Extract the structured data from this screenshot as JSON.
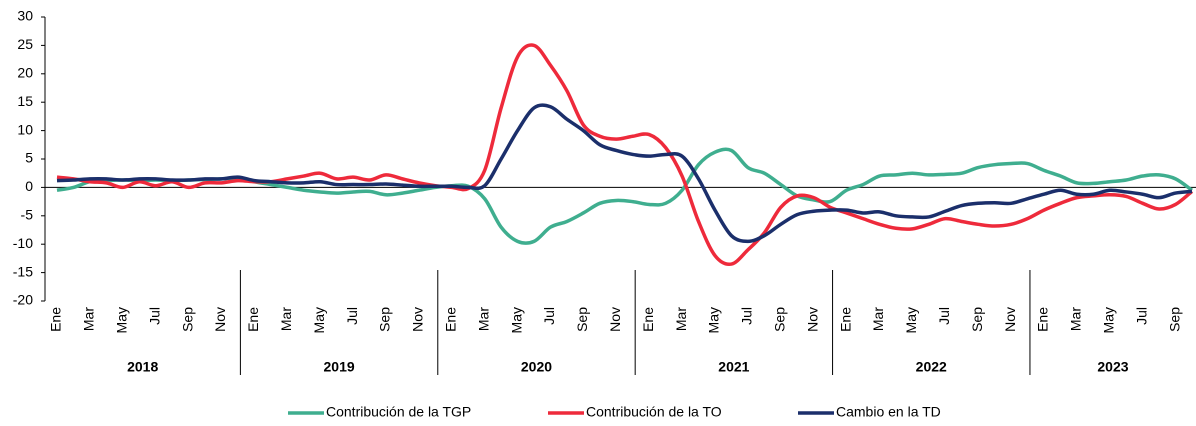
{
  "chart_data": {
    "type": "line",
    "categories": [
      "Ene",
      null,
      "Mar",
      null,
      "May",
      null,
      "Jul",
      null,
      "Sep",
      null,
      "Nov",
      null,
      "Ene",
      null,
      "Mar",
      null,
      "May",
      null,
      "Jul",
      null,
      "Sep",
      null,
      "Nov",
      null,
      "Ene",
      null,
      "Mar",
      null,
      "May",
      null,
      "Jul",
      null,
      "Sep",
      null,
      "Nov",
      null,
      "Ene",
      null,
      "Mar",
      null,
      "May",
      null,
      "Jul",
      null,
      "Sep",
      null,
      "Nov",
      null,
      "Ene",
      null,
      "Mar",
      null,
      "May",
      null,
      "Jul",
      null,
      "Sep",
      null,
      "Nov",
      null,
      "Ene",
      null,
      "Mar",
      null,
      "May",
      null,
      "Jul",
      null,
      "Sep",
      null
    ],
    "years": [
      "2018",
      "2019",
      "2020",
      "2021",
      "2022",
      "2023"
    ],
    "series": [
      {
        "name": "Contribución de la TGP",
        "color": "#3fae8f",
        "values": [
          -0.5,
          0,
          1,
          1.2,
          1.3,
          1.2,
          1.3,
          1.2,
          1.3,
          1.4,
          1.5,
          1.6,
          1,
          0.5,
          0,
          -0.5,
          -0.8,
          -1,
          -0.8,
          -0.7,
          -1.3,
          -1,
          -0.5,
          0,
          0.3,
          0.2,
          -2,
          -7,
          -9.5,
          -9.5,
          -7,
          -6,
          -4.5,
          -2.8,
          -2.3,
          -2.5,
          -3,
          -2.8,
          -0.5,
          4,
          6.2,
          6.5,
          3.5,
          2.5,
          0.5,
          -1.5,
          -2.2,
          -2.5,
          -0.5,
          0.5,
          2,
          2.2,
          2.5,
          2.2,
          2.3,
          2.5,
          3.5,
          4,
          4.2,
          4.2,
          3,
          2,
          0.8,
          0.7,
          1,
          1.3,
          2,
          2.2,
          1.5,
          -0.5
        ]
      },
      {
        "name": "Contribución de la TO",
        "color": "#ee2a3b",
        "values": [
          1.8,
          1.5,
          1,
          0.8,
          0,
          1,
          0.3,
          1,
          0,
          0.8,
          0.8,
          1.2,
          1,
          1,
          1.5,
          2,
          2.5,
          1.5,
          1.8,
          1.3,
          2.2,
          1.5,
          0.8,
          0.3,
          0,
          -0.2,
          3,
          14,
          23,
          25,
          21.5,
          17,
          11,
          9,
          8.5,
          9,
          9.3,
          7,
          2,
          -6,
          -12,
          -13.5,
          -11,
          -8,
          -3.5,
          -1.5,
          -1.8,
          -3.5,
          -4.5,
          -5.5,
          -6.5,
          -7.2,
          -7.3,
          -6.5,
          -5.5,
          -6,
          -6.5,
          -6.8,
          -6.5,
          -5.5,
          -4,
          -2.8,
          -1.8,
          -1.5,
          -1.3,
          -1.6,
          -2.8,
          -3.8,
          -3,
          -0.7
        ]
      },
      {
        "name": "Cambio en la TD",
        "color": "#1b2f6b",
        "values": [
          1.2,
          1.3,
          1.5,
          1.5,
          1.3,
          1.5,
          1.5,
          1.3,
          1.3,
          1.5,
          1.5,
          1.8,
          1.2,
          1,
          0.8,
          0.8,
          1,
          0.5,
          0.5,
          0.5,
          0.6,
          0.4,
          0.2,
          0.2,
          0.2,
          0,
          0.3,
          5,
          10,
          14,
          14.2,
          12,
          10,
          7.5,
          6.5,
          5.8,
          5.5,
          5.8,
          5.5,
          1.5,
          -4,
          -8.5,
          -9.5,
          -8.5,
          -6.5,
          -4.8,
          -4.2,
          -4,
          -4,
          -4.5,
          -4.3,
          -5,
          -5.2,
          -5.2,
          -4.2,
          -3.2,
          -2.8,
          -2.7,
          -2.8,
          -2,
          -1.2,
          -0.5,
          -1.2,
          -1.2,
          -0.5,
          -0.8,
          -1.2,
          -1.8,
          -1,
          -0.7
        ]
      }
    ],
    "ylim": [
      -20,
      30
    ],
    "yticks": [
      -20,
      -15,
      -10,
      -5,
      0,
      5,
      10,
      15,
      20,
      25,
      30
    ]
  }
}
